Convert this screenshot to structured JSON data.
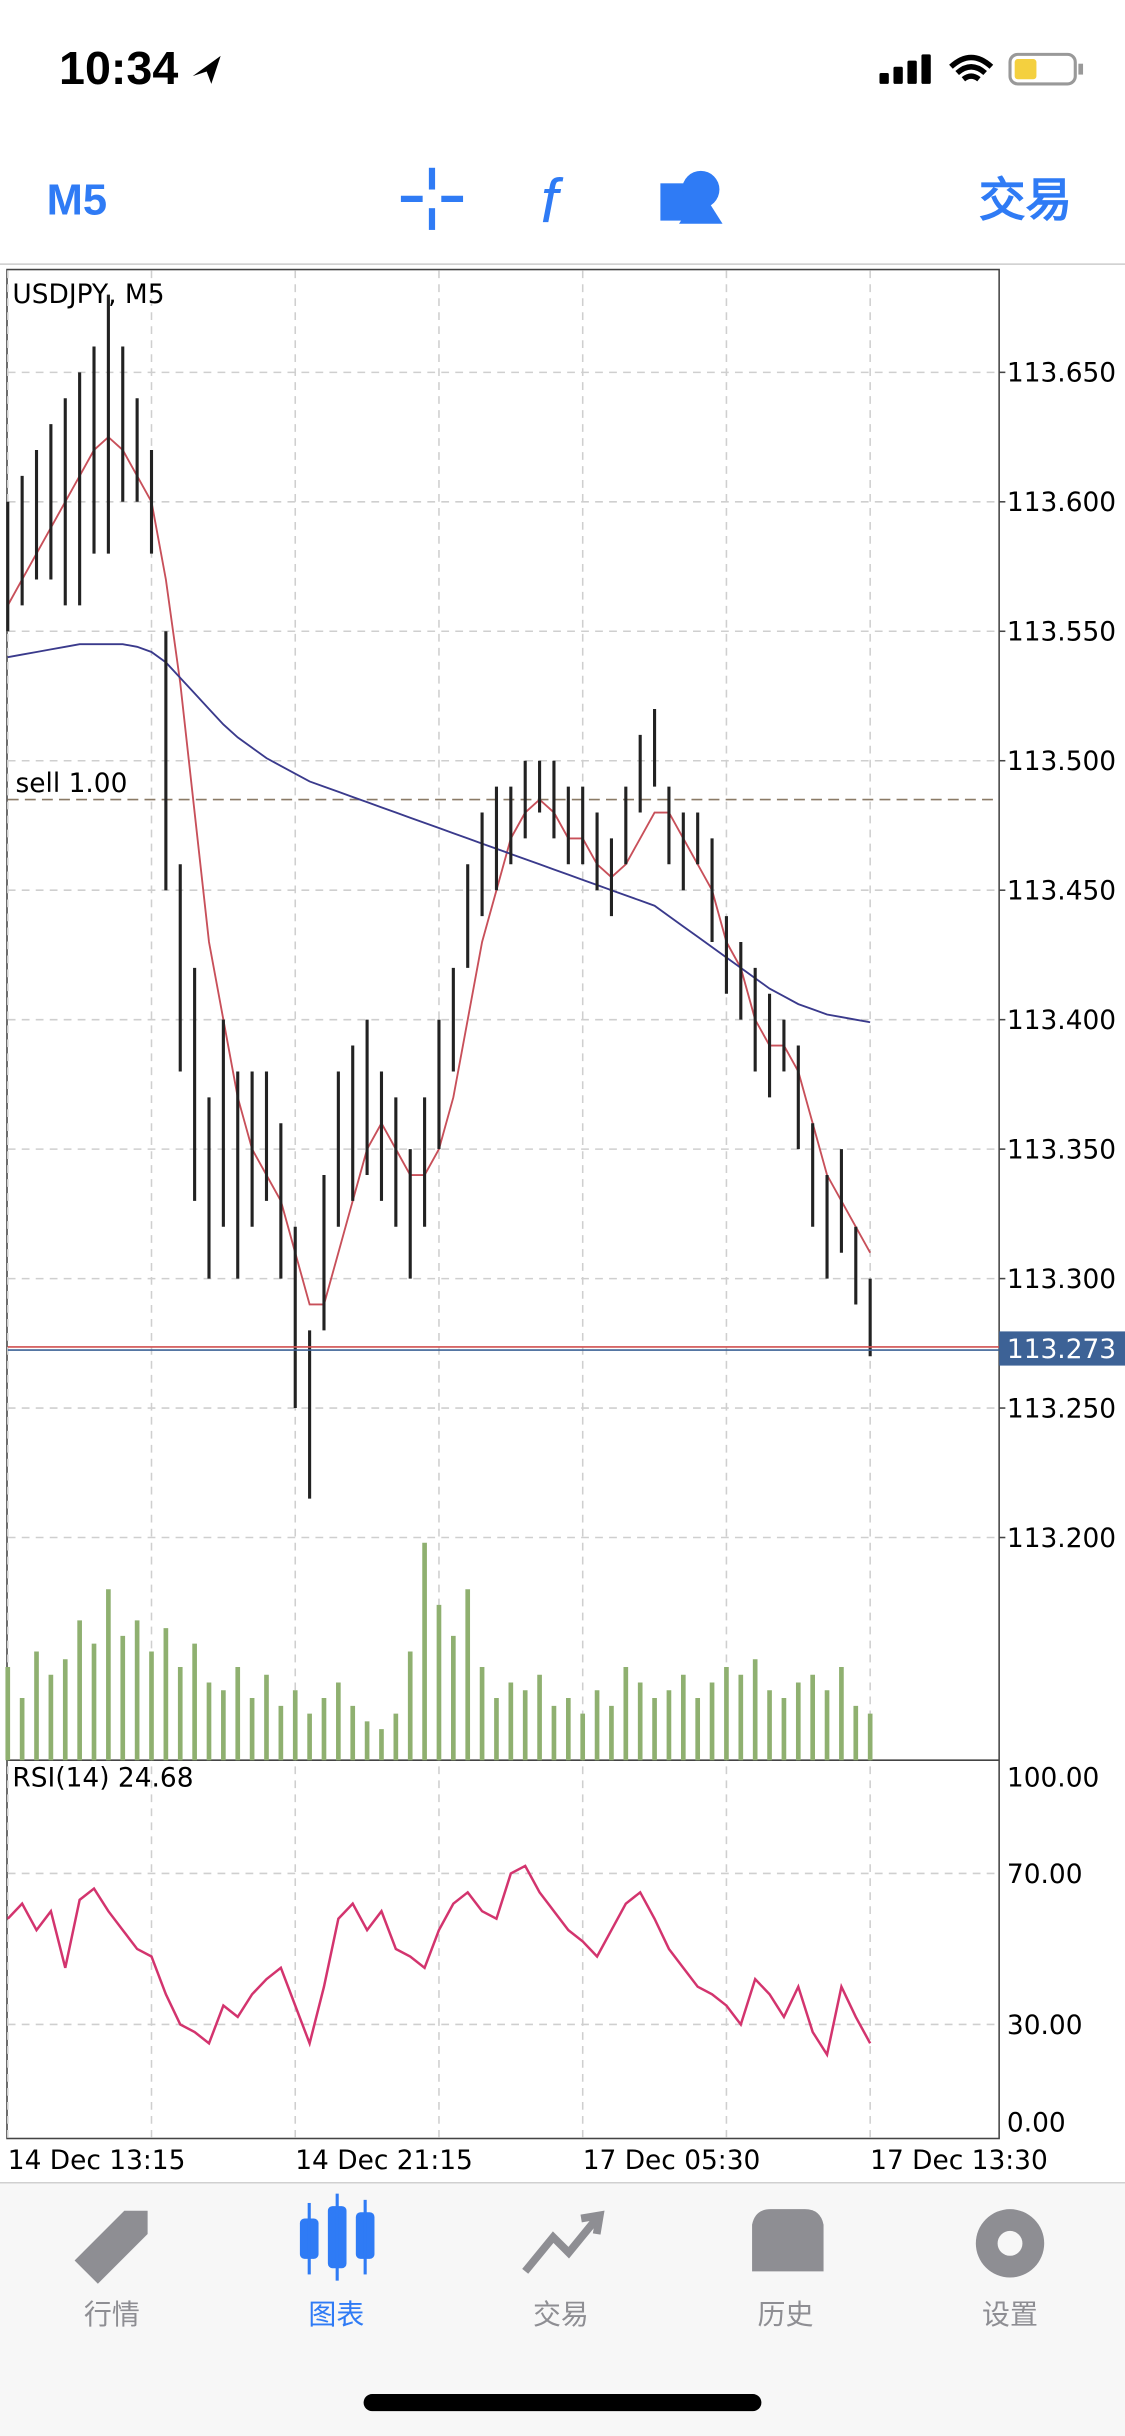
{
  "status_bar": {
    "time": "10:34"
  },
  "toolbar": {
    "timeframe": "M5",
    "trade": "交易"
  },
  "chart_data": [
    {
      "type": "ohlc",
      "title": "USDJPY, M5",
      "color": "#222222",
      "categories": [
        "14 Dec 13:15",
        null,
        null,
        null,
        null,
        null,
        null,
        null,
        null,
        null,
        null,
        null,
        null,
        null,
        null,
        null,
        null,
        null,
        null,
        null,
        "14 Dec 21:15",
        null,
        null,
        null,
        null,
        null,
        null,
        null,
        null,
        null,
        null,
        null,
        null,
        null,
        null,
        null,
        null,
        null,
        null,
        null,
        "17 Dec 05:30",
        null,
        null,
        null,
        null,
        null,
        null,
        null,
        null,
        null,
        null,
        null,
        null,
        null,
        null,
        null,
        null,
        null,
        null,
        null,
        "17 Dec 13:30"
      ],
      "high": [
        113.6,
        113.61,
        113.62,
        113.63,
        113.64,
        113.65,
        113.66,
        113.68,
        113.66,
        113.64,
        113.62,
        113.55,
        113.46,
        113.42,
        113.37,
        113.4,
        113.38,
        113.38,
        113.38,
        113.36,
        113.32,
        113.28,
        113.34,
        113.38,
        113.39,
        113.4,
        113.38,
        113.37,
        113.35,
        113.37,
        113.4,
        113.42,
        113.46,
        113.48,
        113.49,
        113.49,
        113.5,
        113.5,
        113.5,
        113.49,
        113.49,
        113.48,
        113.47,
        113.49,
        113.51,
        113.52,
        113.49,
        113.48,
        113.48,
        113.47,
        113.44,
        113.43,
        113.42,
        113.41,
        113.4,
        113.39,
        113.36,
        113.34,
        113.35,
        113.32,
        113.3
      ],
      "low": [
        113.55,
        113.56,
        113.57,
        113.57,
        113.56,
        113.56,
        113.58,
        113.58,
        113.6,
        113.6,
        113.58,
        113.45,
        113.38,
        113.33,
        113.3,
        113.32,
        113.3,
        113.32,
        113.33,
        113.3,
        113.25,
        113.215,
        113.28,
        113.32,
        113.33,
        113.34,
        113.33,
        113.32,
        113.3,
        113.32,
        113.35,
        113.38,
        113.42,
        113.44,
        113.45,
        113.46,
        113.47,
        113.48,
        113.47,
        113.46,
        113.46,
        113.45,
        113.44,
        113.46,
        113.48,
        113.49,
        113.46,
        113.45,
        113.46,
        113.43,
        113.41,
        113.4,
        113.38,
        113.37,
        113.38,
        113.35,
        113.32,
        113.3,
        113.31,
        113.29,
        113.27
      ],
      "lines": [
        {
          "color": "#c8505a",
          "values": [
            113.56,
            113.57,
            113.58,
            113.59,
            113.6,
            113.61,
            113.62,
            113.625,
            113.62,
            113.61,
            113.6,
            113.57,
            113.53,
            113.48,
            113.43,
            113.4,
            113.37,
            113.35,
            113.34,
            113.33,
            113.31,
            113.29,
            113.29,
            113.31,
            113.33,
            113.35,
            113.36,
            113.35,
            113.34,
            113.34,
            113.35,
            113.37,
            113.4,
            113.43,
            113.45,
            113.47,
            113.48,
            113.485,
            113.48,
            113.47,
            113.47,
            113.46,
            113.455,
            113.46,
            113.47,
            113.48,
            113.48,
            113.47,
            113.46,
            113.45,
            113.43,
            113.42,
            113.4,
            113.39,
            113.39,
            113.38,
            113.36,
            113.34,
            113.33,
            113.32,
            113.31
          ]
        },
        {
          "color": "#3a3a8c",
          "values": [
            113.54,
            113.541,
            113.542,
            113.543,
            113.544,
            113.545,
            113.545,
            113.545,
            113.545,
            113.544,
            113.542,
            113.538,
            113.532,
            113.526,
            113.52,
            113.514,
            113.509,
            113.505,
            113.501,
            113.498,
            113.495,
            113.492,
            113.49,
            113.488,
            113.486,
            113.484,
            113.482,
            113.48,
            113.478,
            113.476,
            113.474,
            113.472,
            113.47,
            113.468,
            113.466,
            113.464,
            113.462,
            113.46,
            113.458,
            113.456,
            113.454,
            113.452,
            113.45,
            113.448,
            113.446,
            113.444,
            113.44,
            113.436,
            113.432,
            113.428,
            113.424,
            113.42,
            113.416,
            113.412,
            113.409,
            113.406,
            113.404,
            113.402,
            113.401,
            113.4,
            113.399
          ]
        }
      ],
      "volume": {
        "color": "#8fb070",
        "values": [
          60,
          40,
          70,
          55,
          65,
          90,
          75,
          110,
          80,
          90,
          70,
          85,
          60,
          75,
          50,
          45,
          60,
          40,
          55,
          35,
          45,
          30,
          40,
          50,
          35,
          25,
          20,
          30,
          70,
          140,
          100,
          80,
          110,
          60,
          40,
          50,
          45,
          55,
          35,
          40,
          30,
          45,
          35,
          60,
          50,
          40,
          45,
          55,
          40,
          50,
          60,
          55,
          65,
          45,
          40,
          50,
          55,
          45,
          60,
          35,
          30
        ]
      },
      "ylim": [
        113.114,
        113.69
      ],
      "yticks": [
        {
          "value": 113.2,
          "label": "113.200"
        },
        {
          "value": 113.25,
          "label": "113.250"
        },
        {
          "value": 113.3,
          "label": "113.300"
        },
        {
          "value": 113.35,
          "label": "113.350"
        },
        {
          "value": 113.4,
          "label": "113.400"
        },
        {
          "value": 113.45,
          "label": "113.450"
        },
        {
          "value": 113.5,
          "label": "113.500"
        },
        {
          "value": 113.55,
          "label": "113.550"
        },
        {
          "value": 113.6,
          "label": "113.600"
        },
        {
          "value": 113.65,
          "label": "113.650"
        }
      ],
      "grid": true,
      "current_price": 113.273,
      "order": {
        "label": "sell 1.00",
        "price": 113.485
      }
    },
    {
      "type": "line",
      "title": "RSI(14) 24.68",
      "color": "#d3346e",
      "values": [
        58,
        62,
        55,
        60,
        45,
        63,
        66,
        60,
        55,
        50,
        48,
        38,
        30,
        28,
        25,
        35,
        32,
        38,
        42,
        45,
        35,
        25,
        40,
        58,
        62,
        55,
        60,
        50,
        48,
        45,
        55,
        62,
        65,
        60,
        58,
        70,
        72,
        65,
        60,
        55,
        52,
        48,
        55,
        62,
        65,
        58,
        50,
        45,
        40,
        38,
        35,
        30,
        42,
        38,
        32,
        40,
        28,
        22,
        40,
        32,
        25
      ],
      "ylim": [
        0,
        100
      ],
      "yticks": [
        {
          "value": 100,
          "label": "100.00"
        },
        {
          "value": 70,
          "label": "70.00"
        },
        {
          "value": 30,
          "label": "30.00"
        },
        {
          "value": 0,
          "label": "0.00"
        }
      ],
      "grid": true
    }
  ],
  "tab_bar": {
    "tabs": [
      "行情",
      "图表",
      "交易",
      "历史",
      "设置"
    ],
    "active": 1
  }
}
